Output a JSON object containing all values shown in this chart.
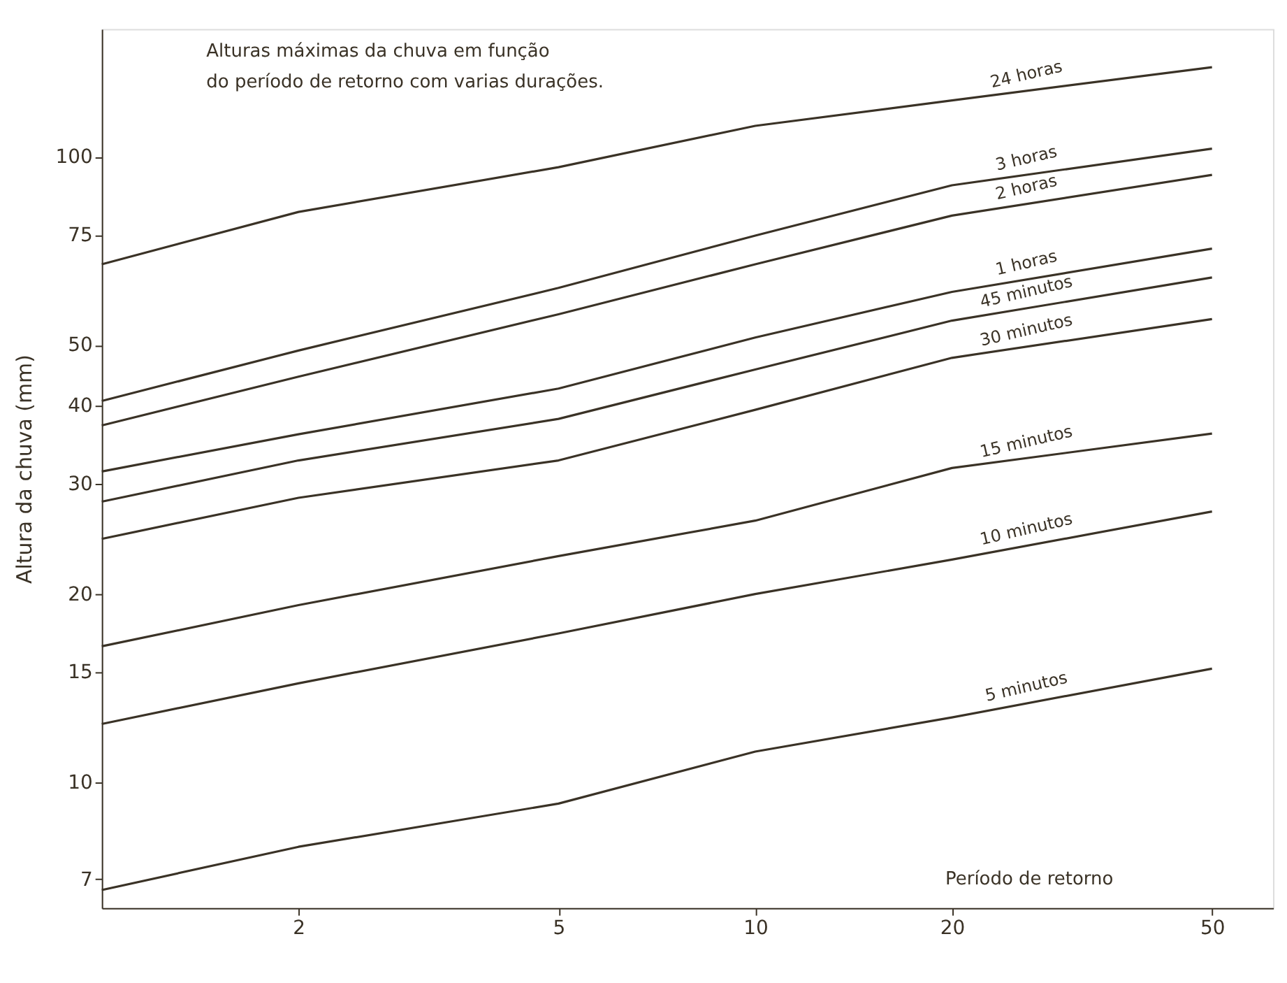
{
  "chart_data": {
    "type": "line",
    "title": "Alturas máximas da chuva em função\ndo período de retorno com varias durações.",
    "xlabel": "Período de retorno",
    "ylabel": "Altura da chuva (mm)",
    "x": [
      1,
      2,
      5,
      10,
      20,
      50
    ],
    "log": "xy",
    "xlim": [
      1,
      62
    ],
    "ylim": [
      6.3,
      160
    ],
    "xticks": [
      2,
      5,
      10,
      20,
      50
    ],
    "yticks": [
      7,
      10,
      15,
      20,
      30,
      40,
      50,
      75,
      100
    ],
    "grid": false,
    "legend": false,
    "marker": "none",
    "line_style": "solid",
    "series": [
      {
        "name": "24 horas",
        "color": "#3a3226",
        "values": [
          67.3,
          81.6,
          96.2,
          112,
          123,
          139
        ]
      },
      {
        "name": "3 horas",
        "color": "#3a3226",
        "values": [
          40.7,
          49,
          61.7,
          74.8,
          90,
          103
        ]
      },
      {
        "name": "2 horas",
        "color": "#3a3226",
        "values": [
          37.2,
          44.5,
          56,
          67.3,
          80.5,
          93.5
        ]
      },
      {
        "name": "1 horas",
        "color": "#3a3226",
        "values": [
          31.4,
          36,
          42.6,
          51.4,
          60.8,
          71.3
        ]
      },
      {
        "name": "45 minutos",
        "color": "#3a3226",
        "values": [
          28.1,
          32.7,
          38.1,
          45.7,
          54.7,
          64.1
        ]
      },
      {
        "name": "30 minutos",
        "color": "#3a3226",
        "values": [
          24.5,
          28.5,
          32.7,
          39.4,
          47.7,
          55
        ]
      },
      {
        "name": "15 minutos",
        "color": "#3a3226",
        "values": [
          16.5,
          19.2,
          23,
          26.2,
          31.8,
          36.1
        ]
      },
      {
        "name": "10 minutos",
        "color": "#3a3226",
        "values": [
          12.4,
          14.4,
          17.3,
          20,
          22.7,
          27.1
        ]
      },
      {
        "name": "5 minutos",
        "color": "#3a3226",
        "values": [
          6.73,
          7.89,
          9.25,
          11.2,
          12.7,
          15.2
        ]
      }
    ]
  }
}
